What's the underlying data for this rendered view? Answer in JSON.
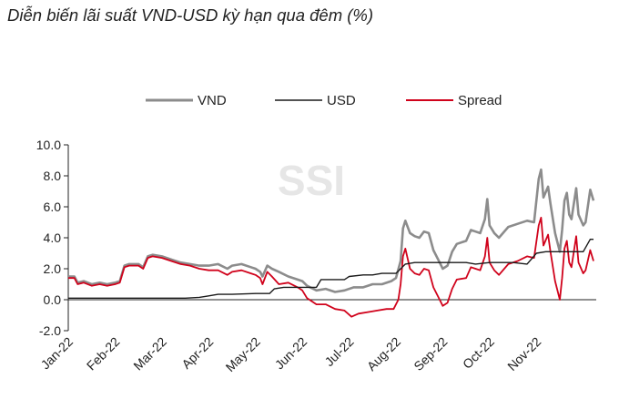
{
  "chart_data": {
    "type": "line",
    "title": "Diễn biến lãi suất VND-USD kỳ hạn qua đêm (%)",
    "watermark": "SSI",
    "ylim": [
      -2.0,
      10.0
    ],
    "y_ticks": [
      "10.0",
      "8.0",
      "6.0",
      "4.0",
      "2.0",
      "0.0",
      "-2.0"
    ],
    "y_tick_values": [
      10,
      8,
      6,
      4,
      2,
      0,
      -2
    ],
    "x_ticks": [
      "Jan-22",
      "Feb-22",
      "Mar-22",
      "Apr-22",
      "May-22",
      "Jun-22",
      "Jul-22",
      "Aug-22",
      "Sep-22",
      "Oct-22",
      "Nov-22"
    ],
    "x_range_months": [
      0,
      10.6
    ],
    "legend_position": "top",
    "series": [
      {
        "name": "VND",
        "color": "#8c8c8c",
        "points": [
          [
            0,
            1.5
          ],
          [
            0.13,
            1.5
          ],
          [
            0.2,
            1.1
          ],
          [
            0.33,
            1.2
          ],
          [
            0.5,
            1.0
          ],
          [
            0.67,
            1.1
          ],
          [
            0.83,
            1.0
          ],
          [
            1.0,
            1.1
          ],
          [
            1.1,
            1.2
          ],
          [
            1.2,
            2.2
          ],
          [
            1.3,
            2.3
          ],
          [
            1.5,
            2.3
          ],
          [
            1.6,
            2.1
          ],
          [
            1.7,
            2.8
          ],
          [
            1.8,
            2.9
          ],
          [
            2.0,
            2.8
          ],
          [
            2.2,
            2.6
          ],
          [
            2.4,
            2.4
          ],
          [
            2.6,
            2.3
          ],
          [
            2.8,
            2.2
          ],
          [
            3.0,
            2.2
          ],
          [
            3.2,
            2.3
          ],
          [
            3.4,
            2.0
          ],
          [
            3.5,
            2.2
          ],
          [
            3.7,
            2.3
          ],
          [
            3.9,
            2.1
          ],
          [
            4.0,
            2.0
          ],
          [
            4.1,
            1.8
          ],
          [
            4.15,
            1.5
          ],
          [
            4.25,
            2.2
          ],
          [
            4.35,
            2.0
          ],
          [
            4.5,
            1.8
          ],
          [
            4.7,
            1.5
          ],
          [
            4.9,
            1.3
          ],
          [
            5.0,
            1.2
          ],
          [
            5.1,
            0.9
          ],
          [
            5.3,
            0.6
          ],
          [
            5.5,
            0.7
          ],
          [
            5.7,
            0.5
          ],
          [
            5.9,
            0.6
          ],
          [
            6.1,
            0.8
          ],
          [
            6.3,
            0.8
          ],
          [
            6.5,
            1.0
          ],
          [
            6.7,
            1.0
          ],
          [
            6.9,
            1.2
          ],
          [
            7.0,
            1.4
          ],
          [
            7.1,
            2.5
          ],
          [
            7.15,
            4.6
          ],
          [
            7.2,
            5.1
          ],
          [
            7.3,
            4.3
          ],
          [
            7.4,
            4.1
          ],
          [
            7.5,
            4.0
          ],
          [
            7.6,
            4.4
          ],
          [
            7.7,
            4.3
          ],
          [
            7.8,
            3.2
          ],
          [
            7.9,
            2.6
          ],
          [
            8.0,
            2.0
          ],
          [
            8.1,
            2.2
          ],
          [
            8.2,
            3.1
          ],
          [
            8.3,
            3.6
          ],
          [
            8.5,
            3.8
          ],
          [
            8.6,
            4.5
          ],
          [
            8.7,
            4.4
          ],
          [
            8.8,
            4.3
          ],
          [
            8.9,
            5.2
          ],
          [
            8.95,
            6.5
          ],
          [
            9.0,
            4.8
          ],
          [
            9.1,
            4.3
          ],
          [
            9.2,
            4.0
          ],
          [
            9.4,
            4.7
          ],
          [
            9.6,
            4.9
          ],
          [
            9.8,
            5.1
          ],
          [
            9.95,
            5.0
          ],
          [
            10.05,
            7.8
          ],
          [
            10.1,
            8.4
          ],
          [
            10.15,
            6.6
          ],
          [
            10.25,
            7.3
          ],
          [
            10.3,
            6.2
          ],
          [
            10.4,
            4.3
          ],
          [
            10.5,
            3.1
          ],
          [
            10.55,
            4.5
          ],
          [
            10.6,
            6.4
          ],
          [
            10.65,
            6.9
          ],
          [
            10.7,
            5.5
          ],
          [
            10.75,
            5.2
          ],
          [
            10.85,
            7.2
          ],
          [
            10.9,
            5.5
          ],
          [
            11.0,
            4.8
          ],
          [
            11.05,
            5.0
          ],
          [
            11.15,
            7.1
          ],
          [
            11.22,
            6.4
          ]
        ]
      },
      {
        "name": "USD",
        "color": "#1a1a1a",
        "points": [
          [
            0,
            0.1
          ],
          [
            1.0,
            0.1
          ],
          [
            2.0,
            0.1
          ],
          [
            2.5,
            0.1
          ],
          [
            2.8,
            0.15
          ],
          [
            3.0,
            0.25
          ],
          [
            3.2,
            0.35
          ],
          [
            3.5,
            0.35
          ],
          [
            4.0,
            0.4
          ],
          [
            4.3,
            0.4
          ],
          [
            4.4,
            0.7
          ],
          [
            4.6,
            0.8
          ],
          [
            5.0,
            0.8
          ],
          [
            5.3,
            0.8
          ],
          [
            5.4,
            1.3
          ],
          [
            5.9,
            1.3
          ],
          [
            6.0,
            1.5
          ],
          [
            6.3,
            1.6
          ],
          [
            6.5,
            1.6
          ],
          [
            6.7,
            1.7
          ],
          [
            7.0,
            1.7
          ],
          [
            7.2,
            2.3
          ],
          [
            7.4,
            2.4
          ],
          [
            8.0,
            2.4
          ],
          [
            8.5,
            2.4
          ],
          [
            8.7,
            2.3
          ],
          [
            9.0,
            2.4
          ],
          [
            9.5,
            2.4
          ],
          [
            9.8,
            2.3
          ],
          [
            10.0,
            3.0
          ],
          [
            10.2,
            3.1
          ],
          [
            10.6,
            3.1
          ],
          [
            11.0,
            3.1
          ],
          [
            11.15,
            3.9
          ],
          [
            11.22,
            3.9
          ]
        ]
      },
      {
        "name": "Spread",
        "color": "#d0021b",
        "points": [
          [
            0,
            1.4
          ],
          [
            0.13,
            1.4
          ],
          [
            0.2,
            1.0
          ],
          [
            0.33,
            1.1
          ],
          [
            0.5,
            0.9
          ],
          [
            0.67,
            1.0
          ],
          [
            0.83,
            0.9
          ],
          [
            1.0,
            1.0
          ],
          [
            1.1,
            1.1
          ],
          [
            1.2,
            2.1
          ],
          [
            1.3,
            2.2
          ],
          [
            1.5,
            2.2
          ],
          [
            1.6,
            2.0
          ],
          [
            1.7,
            2.7
          ],
          [
            1.8,
            2.8
          ],
          [
            2.0,
            2.7
          ],
          [
            2.2,
            2.5
          ],
          [
            2.4,
            2.3
          ],
          [
            2.6,
            2.2
          ],
          [
            2.8,
            2.0
          ],
          [
            3.0,
            1.9
          ],
          [
            3.2,
            1.9
          ],
          [
            3.4,
            1.6
          ],
          [
            3.5,
            1.8
          ],
          [
            3.7,
            1.9
          ],
          [
            3.9,
            1.7
          ],
          [
            4.0,
            1.6
          ],
          [
            4.1,
            1.4
          ],
          [
            4.15,
            1.0
          ],
          [
            4.25,
            1.8
          ],
          [
            4.35,
            1.5
          ],
          [
            4.5,
            1.0
          ],
          [
            4.7,
            1.1
          ],
          [
            4.9,
            0.8
          ],
          [
            5.0,
            0.6
          ],
          [
            5.1,
            0.1
          ],
          [
            5.3,
            -0.3
          ],
          [
            5.5,
            -0.3
          ],
          [
            5.7,
            -0.6
          ],
          [
            5.9,
            -0.7
          ],
          [
            6.05,
            -1.1
          ],
          [
            6.2,
            -0.9
          ],
          [
            6.4,
            -0.8
          ],
          [
            6.6,
            -0.7
          ],
          [
            6.8,
            -0.6
          ],
          [
            6.95,
            -0.6
          ],
          [
            7.05,
            0.0
          ],
          [
            7.1,
            1.0
          ],
          [
            7.15,
            2.8
          ],
          [
            7.2,
            3.3
          ],
          [
            7.3,
            2.0
          ],
          [
            7.4,
            1.7
          ],
          [
            7.5,
            1.6
          ],
          [
            7.6,
            2.0
          ],
          [
            7.7,
            1.9
          ],
          [
            7.8,
            0.8
          ],
          [
            7.9,
            0.2
          ],
          [
            8.0,
            -0.4
          ],
          [
            8.1,
            -0.2
          ],
          [
            8.2,
            0.7
          ],
          [
            8.3,
            1.3
          ],
          [
            8.5,
            1.4
          ],
          [
            8.6,
            2.1
          ],
          [
            8.7,
            2.0
          ],
          [
            8.8,
            1.9
          ],
          [
            8.9,
            2.8
          ],
          [
            8.95,
            4.0
          ],
          [
            9.0,
            2.4
          ],
          [
            9.1,
            1.9
          ],
          [
            9.2,
            1.6
          ],
          [
            9.4,
            2.3
          ],
          [
            9.6,
            2.5
          ],
          [
            9.8,
            2.8
          ],
          [
            9.95,
            2.7
          ],
          [
            10.05,
            4.8
          ],
          [
            10.1,
            5.3
          ],
          [
            10.15,
            3.5
          ],
          [
            10.25,
            4.2
          ],
          [
            10.3,
            3.1
          ],
          [
            10.4,
            1.2
          ],
          [
            10.5,
            0.0
          ],
          [
            10.55,
            1.4
          ],
          [
            10.6,
            3.3
          ],
          [
            10.65,
            3.8
          ],
          [
            10.7,
            2.4
          ],
          [
            10.75,
            2.1
          ],
          [
            10.85,
            4.1
          ],
          [
            10.9,
            2.4
          ],
          [
            11.0,
            1.7
          ],
          [
            11.05,
            1.9
          ],
          [
            11.15,
            3.2
          ],
          [
            11.22,
            2.5
          ]
        ]
      }
    ]
  }
}
